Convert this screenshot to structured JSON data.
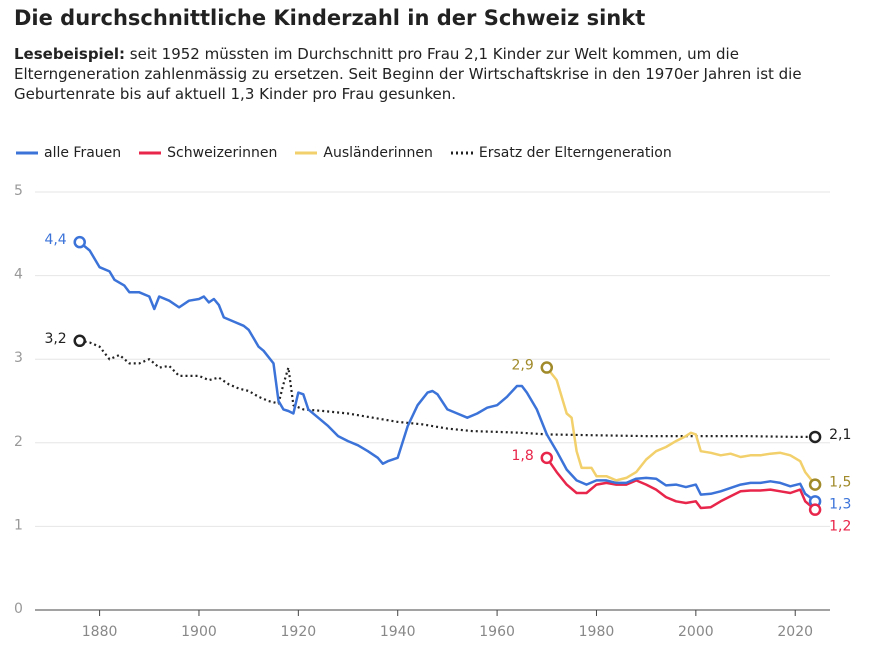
{
  "chart_data": {
    "type": "line",
    "title": "Die durchschnittliche Kinderzahl in der Schweiz sinkt",
    "subtitle_label": "Lesebeispiel:",
    "subtitle": "seit 1952 müssten im Durchschnitt pro Frau 2,1 Kinder zur Welt kommen, um die Elterngeneration zahlenmässig zu ersetzen. Seit Beginn der Wirtschaftskrise in den 1970er Jahren ist die Geburtenrate bis auf aktuell 1,3 Kinder pro Frau gesunken.",
    "xlim": [
      1867,
      2027
    ],
    "xticks": [
      1880,
      1900,
      1920,
      1940,
      1960,
      1980,
      2000,
      2020
    ],
    "ylim": [
      0,
      5
    ],
    "yticks": [
      0,
      1,
      2,
      3,
      4,
      5
    ],
    "grid": true,
    "series": [
      {
        "name": "alle Frauen",
        "color": "#3b73d9",
        "x": [
          1876,
          1878,
          1880,
          1882,
          1883,
          1885,
          1886,
          1888,
          1890,
          1891,
          1892,
          1894,
          1896,
          1898,
          1900,
          1901,
          1902,
          1903,
          1904,
          1905,
          1907,
          1909,
          1910,
          1912,
          1913,
          1915,
          1916,
          1917,
          1918,
          1919,
          1920,
          1921,
          1922,
          1924,
          1926,
          1928,
          1930,
          1932,
          1934,
          1936,
          1937,
          1938,
          1940,
          1942,
          1944,
          1946,
          1947,
          1948,
          1950,
          1952,
          1954,
          1956,
          1958,
          1960,
          1962,
          1964,
          1965,
          1966,
          1968,
          1970,
          1972,
          1974,
          1976,
          1978,
          1980,
          1982,
          1984,
          1986,
          1988,
          1990,
          1992,
          1994,
          1996,
          1998,
          2000,
          2001,
          2003,
          2005,
          2007,
          2009,
          2011,
          2013,
          2015,
          2017,
          2019,
          2021,
          2022,
          2024
        ],
        "values": [
          4.4,
          4.3,
          4.1,
          4.05,
          3.95,
          3.88,
          3.8,
          3.8,
          3.75,
          3.6,
          3.75,
          3.7,
          3.62,
          3.7,
          3.72,
          3.75,
          3.68,
          3.72,
          3.65,
          3.5,
          3.45,
          3.4,
          3.35,
          3.15,
          3.1,
          2.95,
          2.5,
          2.4,
          2.38,
          2.35,
          2.6,
          2.58,
          2.4,
          2.3,
          2.2,
          2.08,
          2.02,
          1.97,
          1.9,
          1.82,
          1.75,
          1.78,
          1.82,
          2.2,
          2.45,
          2.6,
          2.62,
          2.58,
          2.4,
          2.35,
          2.3,
          2.35,
          2.42,
          2.45,
          2.55,
          2.68,
          2.68,
          2.6,
          2.4,
          2.1,
          1.9,
          1.68,
          1.55,
          1.5,
          1.55,
          1.55,
          1.52,
          1.52,
          1.57,
          1.58,
          1.57,
          1.49,
          1.5,
          1.47,
          1.5,
          1.38,
          1.39,
          1.42,
          1.46,
          1.5,
          1.52,
          1.52,
          1.54,
          1.52,
          1.48,
          1.51,
          1.39,
          1.3
        ]
      },
      {
        "name": "Schweizerinnen",
        "color": "#e8254a",
        "x": [
          1970,
          1972,
          1974,
          1976,
          1978,
          1980,
          1982,
          1984,
          1986,
          1988,
          1990,
          1992,
          1994,
          1996,
          1998,
          2000,
          2001,
          2003,
          2005,
          2007,
          2009,
          2011,
          2013,
          2015,
          2017,
          2019,
          2021,
          2022,
          2024
        ],
        "values": [
          1.82,
          1.65,
          1.5,
          1.4,
          1.4,
          1.5,
          1.52,
          1.5,
          1.5,
          1.55,
          1.5,
          1.44,
          1.35,
          1.3,
          1.28,
          1.3,
          1.22,
          1.23,
          1.3,
          1.36,
          1.42,
          1.43,
          1.43,
          1.44,
          1.42,
          1.4,
          1.44,
          1.3,
          1.2
        ]
      },
      {
        "name": "Ausländerinnen",
        "color": "#f2d06b",
        "x": [
          1970,
          1972,
          1974,
          1975,
          1976,
          1977,
          1979,
          1980,
          1982,
          1984,
          1986,
          1988,
          1990,
          1992,
          1994,
          1996,
          1998,
          1999,
          2000,
          2001,
          2003,
          2005,
          2007,
          2009,
          2011,
          2013,
          2015,
          2017,
          2019,
          2021,
          2022,
          2024
        ],
        "values": [
          2.9,
          2.75,
          2.35,
          2.3,
          1.9,
          1.7,
          1.7,
          1.6,
          1.6,
          1.55,
          1.58,
          1.65,
          1.8,
          1.9,
          1.95,
          2.02,
          2.08,
          2.12,
          2.1,
          1.9,
          1.88,
          1.85,
          1.87,
          1.83,
          1.85,
          1.85,
          1.87,
          1.88,
          1.85,
          1.78,
          1.65,
          1.5
        ]
      },
      {
        "name": "Ersatz der Elterngeneration",
        "color": "#222222",
        "style": "dotted",
        "x": [
          1876,
          1878,
          1880,
          1882,
          1884,
          1886,
          1888,
          1890,
          1892,
          1894,
          1896,
          1898,
          1900,
          1902,
          1904,
          1906,
          1908,
          1910,
          1912,
          1914,
          1916,
          1917,
          1918,
          1919,
          1921,
          1925,
          1930,
          1935,
          1940,
          1945,
          1950,
          1955,
          1960,
          1965,
          1970,
          1980,
          1990,
          2000,
          2010,
          2020,
          2024
        ],
        "values": [
          3.22,
          3.2,
          3.15,
          3.0,
          3.05,
          2.95,
          2.95,
          3.0,
          2.9,
          2.92,
          2.8,
          2.8,
          2.8,
          2.75,
          2.78,
          2.7,
          2.65,
          2.62,
          2.55,
          2.5,
          2.47,
          2.7,
          2.9,
          2.45,
          2.4,
          2.38,
          2.35,
          2.3,
          2.25,
          2.22,
          2.17,
          2.14,
          2.13,
          2.12,
          2.1,
          2.09,
          2.08,
          2.08,
          2.08,
          2.07,
          2.07
        ]
      }
    ],
    "annotations": [
      {
        "label": "4,4",
        "x": 1876,
        "y": 4.4,
        "color": "#3b73d9"
      },
      {
        "label": "3,2",
        "x": 1876,
        "y": 3.22,
        "color": "#222222"
      },
      {
        "label": "2,9",
        "x": 1970,
        "y": 2.9,
        "color": "#a08a2a"
      },
      {
        "label": "1,8",
        "x": 1970,
        "y": 1.82,
        "color": "#e8254a"
      },
      {
        "label": "2,1",
        "x": 2024,
        "y": 2.07,
        "color": "#222222"
      },
      {
        "label": "1,5",
        "x": 2024,
        "y": 1.5,
        "color": "#a08a2a"
      },
      {
        "label": "1,3",
        "x": 2024,
        "y": 1.3,
        "color": "#3b73d9"
      },
      {
        "label": "1,2",
        "x": 2024,
        "y": 1.2,
        "color": "#e8254a"
      }
    ]
  }
}
